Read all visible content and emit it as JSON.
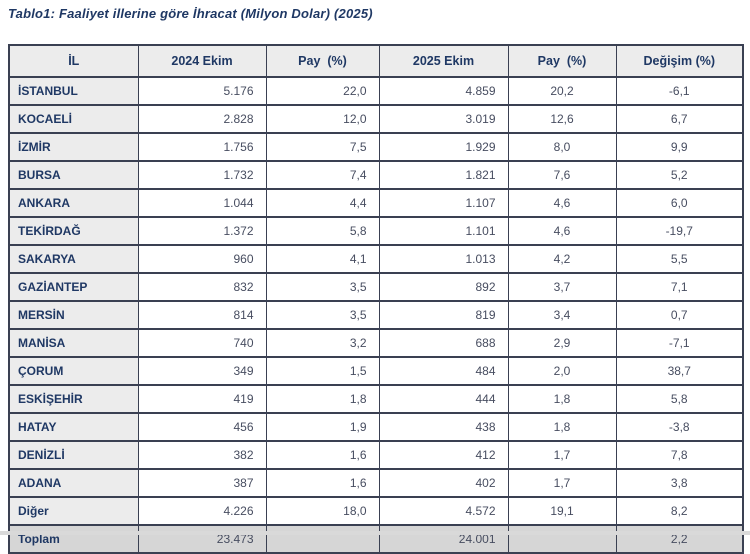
{
  "page": {
    "title": "Tablo1: Faaliyet illerine göre İhracat (Milyon Dolar) (2025)"
  },
  "table": {
    "headers": [
      "İL",
      "2024 Ekim",
      "Pay  (%)",
      "2025 Ekim",
      "Pay  (%)",
      "Değişim (%)"
    ],
    "rows": [
      [
        "İSTANBUL",
        "5.176",
        "22,0",
        "4.859",
        "20,2",
        "-6,1"
      ],
      [
        "KOCAELİ",
        "2.828",
        "12,0",
        "3.019",
        "12,6",
        "6,7"
      ],
      [
        "İZMİR",
        "1.756",
        "7,5",
        "1.929",
        "8,0",
        "9,9"
      ],
      [
        "BURSA",
        "1.732",
        "7,4",
        "1.821",
        "7,6",
        "5,2"
      ],
      [
        "ANKARA",
        "1.044",
        "4,4",
        "1.107",
        "4,6",
        "6,0"
      ],
      [
        "TEKİRDAĞ",
        "1.372",
        "5,8",
        "1.101",
        "4,6",
        "-19,7"
      ],
      [
        "SAKARYA",
        "960",
        "4,1",
        "1.013",
        "4,2",
        "5,5"
      ],
      [
        "GAZİANTEP",
        "832",
        "3,5",
        "892",
        "3,7",
        "7,1"
      ],
      [
        "MERSİN",
        "814",
        "3,5",
        "819",
        "3,4",
        "0,7"
      ],
      [
        "MANİSA",
        "740",
        "3,2",
        "688",
        "2,9",
        "-7,1"
      ],
      [
        "ÇORUM",
        "349",
        "1,5",
        "484",
        "2,0",
        "38,7"
      ],
      [
        "ESKİŞEHİR",
        "419",
        "1,8",
        "444",
        "1,8",
        "5,8"
      ],
      [
        "HATAY",
        "456",
        "1,9",
        "438",
        "1,8",
        "-3,8"
      ],
      [
        "DENİZLİ",
        "382",
        "1,6",
        "412",
        "1,7",
        "7,8"
      ],
      [
        "ADANA",
        "387",
        "1,6",
        "402",
        "1,7",
        "3,8"
      ],
      [
        "Diğer",
        "4.226",
        "18,0",
        "4.572",
        "19,1",
        "8,2"
      ]
    ],
    "total_row": [
      "Toplam",
      "23.473",
      "",
      "24.001",
      "",
      "2,2"
    ]
  },
  "colors": {
    "accent_navy": "#1f3864",
    "data_text": "#474d60",
    "header_bg": "#ececec",
    "label_col_bg": "#ececec",
    "total_row_bg": "#d6d6d6",
    "border": "#3a4052",
    "bottom_divider": "#d9d9d9"
  }
}
